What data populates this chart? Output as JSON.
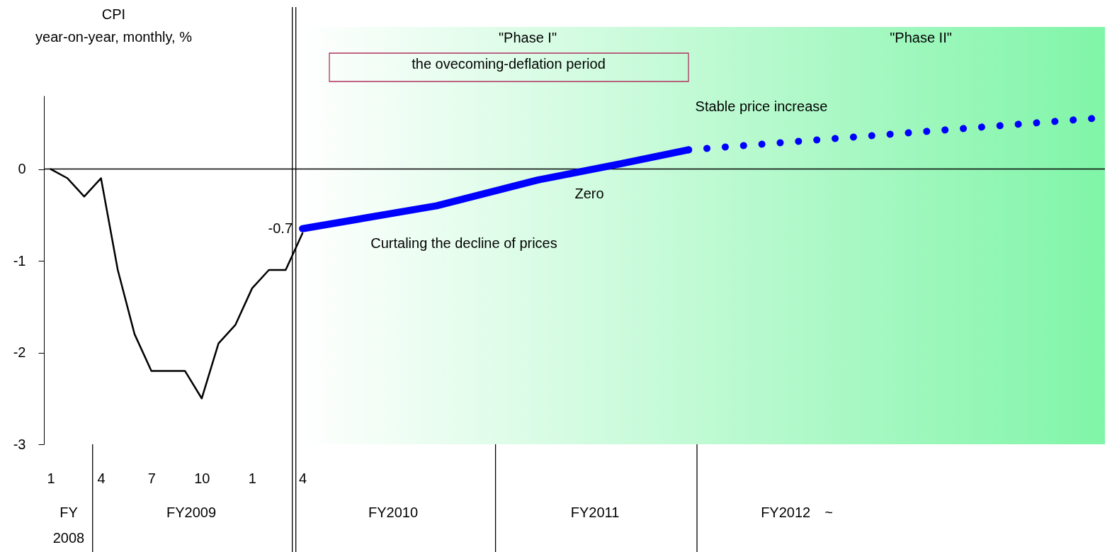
{
  "chart_data": {
    "type": "line",
    "ylabel": "CPI\nyear-on-year, monthly, %",
    "ylim": [
      -3,
      0.8
    ],
    "yticks": [
      -3,
      -2,
      -1,
      0
    ],
    "categories": [
      "1",
      null,
      null,
      "4",
      null,
      null,
      "7",
      null,
      null,
      "10",
      null,
      null,
      "1",
      null,
      null,
      "4",
      null,
      null,
      null,
      null,
      null,
      null,
      null,
      null,
      null,
      null,
      null,
      null,
      null,
      null,
      null,
      null,
      null,
      null,
      null,
      null,
      null,
      null,
      null,
      null,
      null,
      null,
      null,
      null,
      null,
      null,
      null,
      null,
      null,
      null,
      null,
      null,
      null,
      null,
      null,
      null,
      null,
      null,
      null,
      null,
      null,
      null,
      null
    ],
    "grid": false,
    "series": [
      {
        "color": "#000000",
        "values": [
          0,
          -0.1,
          -0.3,
          -0.1,
          -1.1,
          -1.8,
          -2.2,
          -2.2,
          -2.2,
          -2.5,
          -1.9,
          -1.7,
          -1.3,
          -1.1,
          -1.1,
          -0.7,
          null,
          null,
          null,
          null,
          null,
          null,
          null,
          null,
          null,
          null,
          null,
          null,
          null,
          null,
          null,
          null,
          null,
          null,
          null,
          null,
          null,
          null,
          null,
          null,
          null,
          null,
          null,
          null,
          null,
          null,
          null,
          null,
          null,
          null,
          null,
          null,
          null,
          null,
          null,
          null,
          null,
          null,
          null,
          null,
          null,
          null,
          null
        ],
        "value_labels": [
          null,
          null,
          null,
          null,
          null,
          null,
          null,
          null,
          null,
          null,
          null,
          null,
          null,
          null,
          null,
          "-0.7",
          null,
          null,
          null,
          null,
          null,
          null,
          null,
          null,
          null,
          null,
          null,
          null,
          null,
          null,
          null,
          null,
          null,
          null,
          null,
          null,
          null,
          null,
          null,
          null,
          null,
          null,
          null,
          null,
          null,
          null,
          null,
          null,
          null,
          null,
          null,
          null,
          null,
          null,
          null,
          null,
          null,
          null,
          null,
          null,
          null,
          null,
          null
        ]
      },
      {
        "color": "#0000ff",
        "line_style": "solid",
        "values": [
          null,
          null,
          null,
          null,
          null,
          null,
          null,
          null,
          null,
          null,
          null,
          null,
          null,
          null,
          null,
          -0.65,
          null,
          null,
          null,
          null,
          null,
          null,
          null,
          -0.4,
          null,
          null,
          null,
          null,
          null,
          -0.12,
          null,
          null,
          null,
          null,
          0.06,
          null,
          null,
          null,
          0.21,
          null,
          null,
          null,
          null,
          null,
          null,
          null,
          null,
          null,
          null,
          null,
          null,
          null,
          null,
          null,
          null,
          null,
          null,
          null,
          null,
          null,
          null,
          null,
          null
        ]
      },
      {
        "color": "#0000ff",
        "line_style": "dotted",
        "values": [
          null,
          null,
          null,
          null,
          null,
          null,
          null,
          null,
          null,
          null,
          null,
          null,
          null,
          null,
          null,
          null,
          null,
          null,
          null,
          null,
          null,
          null,
          null,
          null,
          null,
          null,
          null,
          null,
          null,
          null,
          null,
          null,
          null,
          null,
          null,
          null,
          null,
          null,
          0.21,
          null,
          null,
          null,
          null,
          null,
          null,
          null,
          null,
          null,
          null,
          null,
          null,
          null,
          null,
          null,
          null,
          null,
          null,
          null,
          null,
          null,
          null,
          null,
          0.55
        ]
      }
    ],
    "ref_lines": [
      {
        "axis": "y",
        "value": 0,
        "color": "#000000"
      }
    ],
    "annotations": [
      "\"Phase I\"",
      "\"Phase II\"",
      "the ovecoming-deflation period",
      "Stable price increase",
      "Zero",
      "Curtaling the decline of prices",
      "FY\n2008",
      "FY2009",
      "FY2010",
      "FY2011",
      "FY2012　~"
    ]
  }
}
